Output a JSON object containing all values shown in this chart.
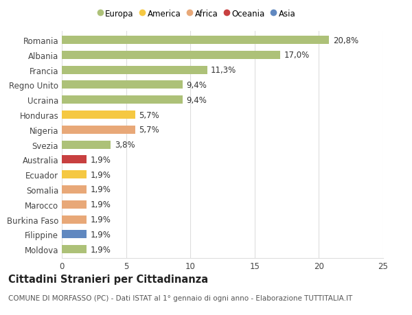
{
  "categories": [
    "Romania",
    "Albania",
    "Francia",
    "Regno Unito",
    "Ucraina",
    "Honduras",
    "Nigeria",
    "Svezia",
    "Australia",
    "Ecuador",
    "Somalia",
    "Marocco",
    "Burkina Faso",
    "Filippine",
    "Moldova"
  ],
  "values": [
    20.8,
    17.0,
    11.3,
    9.4,
    9.4,
    5.7,
    5.7,
    3.8,
    1.9,
    1.9,
    1.9,
    1.9,
    1.9,
    1.9,
    1.9
  ],
  "labels": [
    "20,8%",
    "17,0%",
    "11,3%",
    "9,4%",
    "9,4%",
    "5,7%",
    "5,7%",
    "3,8%",
    "1,9%",
    "1,9%",
    "1,9%",
    "1,9%",
    "1,9%",
    "1,9%",
    "1,9%"
  ],
  "continents": [
    "Europa",
    "Europa",
    "Europa",
    "Europa",
    "Europa",
    "America",
    "Africa",
    "Europa",
    "Oceania",
    "America",
    "Africa",
    "Africa",
    "Africa",
    "Asia",
    "Europa"
  ],
  "colors": {
    "Europa": "#adc178",
    "America": "#f5c842",
    "Africa": "#e8a878",
    "Oceania": "#c84040",
    "Asia": "#6088c0"
  },
  "legend_order": [
    "Europa",
    "America",
    "Africa",
    "Oceania",
    "Asia"
  ],
  "xlim": [
    0,
    25
  ],
  "xticks": [
    0,
    5,
    10,
    15,
    20,
    25
  ],
  "title": "Cittadini Stranieri per Cittadinanza",
  "subtitle": "COMUNE DI MORFASSO (PC) - Dati ISTAT al 1° gennaio di ogni anno - Elaborazione TUTTITALIA.IT",
  "background_color": "#ffffff",
  "grid_color": "#dddddd",
  "bar_height": 0.55,
  "label_fontsize": 8.5,
  "tick_fontsize": 8.5,
  "title_fontsize": 10.5,
  "subtitle_fontsize": 7.5
}
